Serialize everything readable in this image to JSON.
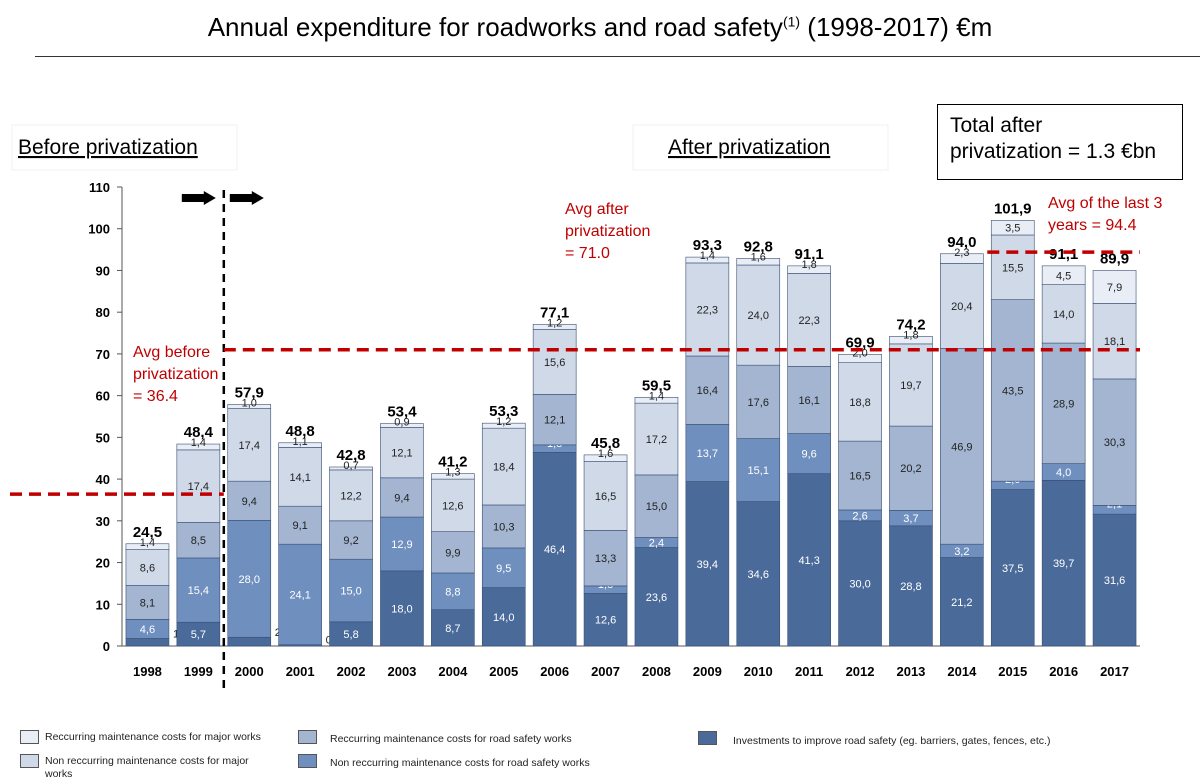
{
  "title": {
    "main": "Annual expenditure for roadworks and road safety",
    "sup": "(1)",
    "range": " (1998-2017) €m"
  },
  "labels": {
    "before": "Before privatization",
    "after": "After privatization",
    "total_line1": "Total after",
    "total_line2": "privatization = 1.3 €bn",
    "avg_before": [
      "Avg before",
      "privatization",
      "= 36.4"
    ],
    "avg_after": [
      "Avg after",
      "privatization",
      "= 71.0"
    ],
    "avg_last3": [
      "Avg of the last 3",
      "years = 94.4"
    ]
  },
  "colors": {
    "investments": "#4a6a9a",
    "nonrec_safety": "#6f8fbf",
    "rec_safety": "#a3b5d1",
    "nonrec_major": "#cfd9e8",
    "rec_major": "#e9eef6",
    "avg_line": "#c00000",
    "avg_text": "#c00000"
  },
  "legend": [
    {
      "label": "Reccurring maintenance costs for major works",
      "series": 4
    },
    {
      "label": "Non reccurring maintenance costs for major works",
      "series": 3
    },
    {
      "label": "Reccurring maintenance costs for road safety works",
      "series": 2
    },
    {
      "label": "Non reccurring maintenance costs for road safety works",
      "series": 1
    },
    {
      "label": "Investments to improve road safety (eg. barriers, gates, fences, etc.)",
      "series": 0
    }
  ],
  "chart_data": {
    "type": "bar",
    "stacked": true,
    "categories": [
      "1998",
      "1999",
      "2000",
      "2001",
      "2002",
      "2003",
      "2004",
      "2005",
      "2006",
      "2007",
      "2008",
      "2009",
      "2010",
      "2011",
      "2012",
      "2013",
      "2014",
      "2015",
      "2016",
      "2017"
    ],
    "ylim": [
      0,
      110
    ],
    "yticks": [
      0,
      10,
      20,
      30,
      40,
      50,
      60,
      70,
      80,
      90,
      100,
      110
    ],
    "series": [
      {
        "name": "Investments to improve road safety (eg. barriers, gates, fences, etc.)",
        "color_key": "investments",
        "values": [
          1.8,
          5.7,
          2.1,
          0.3,
          5.8,
          18.0,
          8.7,
          14.0,
          46.4,
          12.6,
          23.6,
          39.4,
          34.6,
          41.3,
          30.0,
          28.8,
          21.2,
          37.5,
          39.7,
          31.6
        ],
        "labels": [
          "1,8",
          "5,7",
          "2,1",
          "0,3",
          "5,8",
          "18,0",
          "8,7",
          "14,0",
          "46,4",
          "12,6",
          "23,6",
          "39,4",
          "34,6",
          "41,3",
          "30,0",
          "28,8",
          "21,2",
          "37,5",
          "39,7",
          "31,6"
        ]
      },
      {
        "name": "Non reccurring maintenance costs for road safety works",
        "color_key": "nonrec_safety",
        "values": [
          4.6,
          15.4,
          28.0,
          24.1,
          15.0,
          12.9,
          8.8,
          9.5,
          1.8,
          1.8,
          2.4,
          13.7,
          15.1,
          9.6,
          2.6,
          3.7,
          3.2,
          2.0,
          4.0,
          2.1
        ],
        "labels": [
          "4,6",
          "15,4",
          "28,0",
          "24,1",
          "15,0",
          "12,9",
          "8,8",
          "9,5",
          "1,8",
          "1,8",
          "2,4",
          "13,7",
          "15,1",
          "9,6",
          "2,6",
          "3,7",
          "3,2",
          "2,0",
          "4,0",
          "2,1"
        ]
      },
      {
        "name": "Reccurring maintenance costs for road safety works",
        "color_key": "rec_safety",
        "values": [
          8.1,
          8.5,
          9.4,
          9.1,
          9.2,
          9.4,
          9.9,
          10.3,
          12.1,
          13.3,
          15.0,
          16.4,
          17.6,
          16.1,
          16.5,
          20.2,
          46.9,
          43.5,
          28.9,
          30.3
        ],
        "labels": [
          "8,1",
          "8,5",
          "9,4",
          "9,1",
          "9,2",
          "9,4",
          "9,9",
          "10,3",
          "12,1",
          "13,3",
          "15,0",
          "16,4",
          "17,6",
          "16,1",
          "16,5",
          "20,2",
          "46,9",
          "43,5",
          "28,9",
          "30,3"
        ]
      },
      {
        "name": "Non reccurring maintenance costs for major works",
        "color_key": "nonrec_major",
        "values": [
          8.6,
          17.4,
          17.4,
          14.1,
          12.2,
          12.1,
          12.6,
          18.4,
          15.6,
          16.5,
          17.2,
          22.3,
          24.0,
          22.3,
          18.8,
          19.7,
          20.4,
          15.5,
          14.0,
          18.1
        ],
        "labels": [
          "8,6",
          "17,4",
          "17,4",
          "14,1",
          "12,2",
          "12,1",
          "12,6",
          "18,4",
          "15,6",
          "16,5",
          "17,2",
          "22,3",
          "24,0",
          "22,3",
          "18,8",
          "19,7",
          "20,4",
          "15,5",
          "14,0",
          "18,1"
        ]
      },
      {
        "name": "Reccurring maintenance costs for major works",
        "color_key": "rec_major",
        "values": [
          1.4,
          1.4,
          1.0,
          1.1,
          0.7,
          0.9,
          1.3,
          1.2,
          1.2,
          1.6,
          1.4,
          1.4,
          1.6,
          1.8,
          2.0,
          1.8,
          2.3,
          3.5,
          4.5,
          7.9
        ],
        "labels": [
          "1,4",
          "1,4",
          "1,0",
          "1,1",
          "0,7",
          "0,9",
          "1,3",
          "1,2",
          "1,2",
          "1,6",
          "1,4",
          "1,4",
          "1,6",
          "1,8",
          "2,0",
          "1,8",
          "2,3",
          "3,5",
          "4,5",
          "7,9"
        ]
      }
    ],
    "totals": [
      "24,5",
      "48,4",
      "57,9",
      "48,8",
      "42,8",
      "53,4",
      "41,2",
      "53,3",
      "77,1",
      "45,8",
      "59,5",
      "93,3",
      "92,8",
      "91,1",
      "69,9",
      "74,2",
      "94,0",
      "101,9",
      "91,1",
      "89,9"
    ],
    "averages": [
      {
        "value": 36.4,
        "from": "1998",
        "to": "1999"
      },
      {
        "value": 71.0,
        "from": "2000",
        "to": "2017"
      },
      {
        "value": 94.4,
        "from": "2015",
        "to": "2017"
      }
    ],
    "privatization_after": "1999"
  }
}
